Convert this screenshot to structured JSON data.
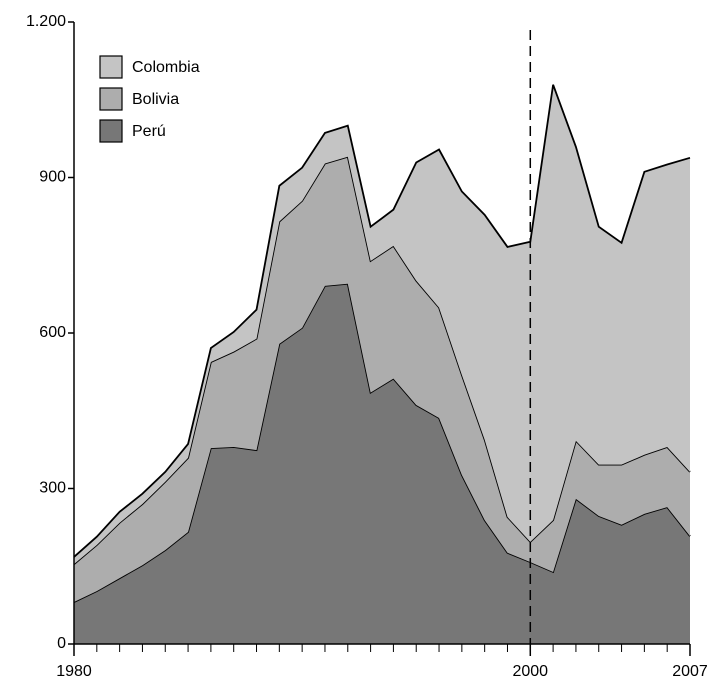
{
  "chart_data": {
    "type": "stacked_area",
    "x": [
      1980,
      1981,
      1982,
      1983,
      1984,
      1985,
      1986,
      1987,
      1988,
      1989,
      1990,
      1991,
      1992,
      1993,
      1994,
      1995,
      1996,
      1997,
      1998,
      1999,
      2000,
      2001,
      2002,
      2003,
      2004,
      2005,
      2006,
      2007
    ],
    "series": [
      {
        "name": "Perú",
        "color": "#777777",
        "values": [
          81,
          102,
          127,
          152,
          181,
          216,
          378,
          380,
          374,
          579,
          610,
          691,
          695,
          485,
          512,
          461,
          436,
          326,
          239,
          176,
          158,
          139,
          280,
          247,
          230,
          251,
          264,
          208
        ]
      },
      {
        "name": "Bolivia",
        "color": "#adadad",
        "values": [
          73,
          89,
          107,
          118,
          132,
          143,
          166,
          184,
          215,
          236,
          245,
          236,
          245,
          254,
          256,
          240,
          213,
          193,
          155,
          69,
          39,
          100,
          112,
          99,
          116,
          114,
          116,
          124
        ]
      },
      {
        "name": "Colombia",
        "color": "#c4c4c4",
        "values": [
          14,
          16,
          21,
          20,
          19,
          27,
          27,
          38,
          56,
          69,
          64,
          59,
          60,
          66,
          70,
          228,
          305,
          354,
          434,
          521,
          579,
          840,
          567,
          459,
          428,
          546,
          545,
          606
        ]
      }
    ],
    "xlim": [
      1980,
      2007
    ],
    "xticks": [
      1980,
      2000,
      2007
    ],
    "ylim": [
      0,
      1200
    ],
    "yticks": [
      0,
      300,
      600,
      900,
      {
        "value": 1200,
        "label": "1.200"
      }
    ],
    "vline": 2000,
    "legend": "upper left"
  }
}
